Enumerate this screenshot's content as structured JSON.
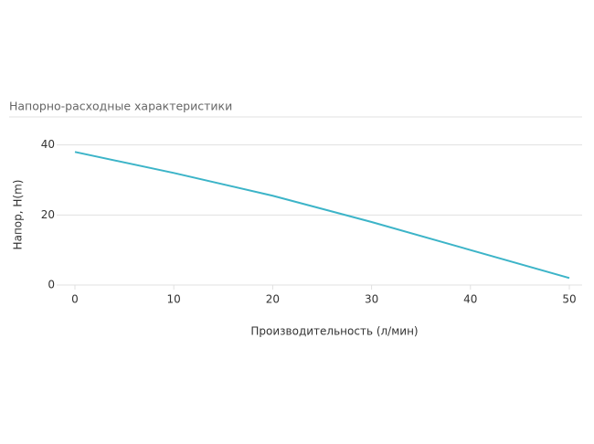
{
  "chart_data": {
    "type": "line",
    "title": "Напорно-расходные характеристики",
    "x_label": "Производительность (л/мин)",
    "y_label": "Напор, H(m)",
    "x": [
      0,
      10,
      20,
      30,
      40,
      50
    ],
    "series": [
      {
        "name": "Напор",
        "color": "#3cb4c8",
        "values": [
          38,
          32,
          25.5,
          18,
          10,
          2
        ]
      }
    ],
    "xlim": [
      0,
      50
    ],
    "xticks": [
      0,
      10,
      20,
      30,
      40,
      50
    ],
    "ylim": [
      0,
      48
    ],
    "yticks": [
      0,
      20,
      40
    ],
    "grid": true
  }
}
